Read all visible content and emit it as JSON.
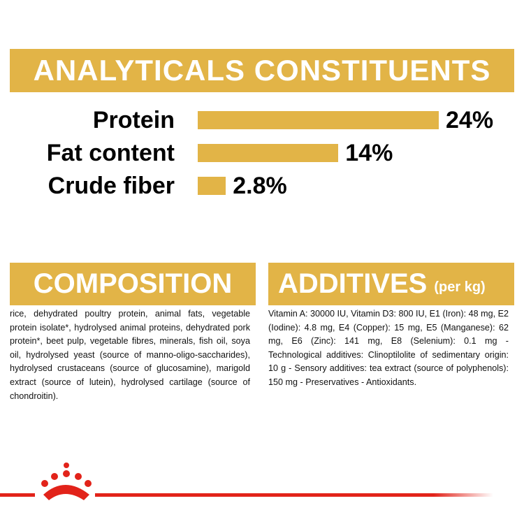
{
  "analyticals": {
    "title": "ANALYTICALS CONSTITUENTS",
    "type": "bar",
    "color": "#e2b447",
    "categories": [
      "Protein",
      "Fat content",
      "Crude fiber"
    ],
    "values": [
      24,
      14,
      2.8
    ],
    "value_labels": [
      "24%",
      "14%",
      "2.8%"
    ]
  },
  "composition": {
    "title": "COMPOSITION",
    "text": "rice, dehydrated poultry protein, animal fats, vegetable protein isolate*, hydrolysed animal proteins, dehydrated pork protein*, beet pulp, vegetable fibres, minerals, fish oil, soya oil, hydrolysed yeast (source of manno-oligo-saccharides), hydrolysed crustaceans (source of glucosamine), marigold extract (source of lutein), hydrolysed cartilage (source of chondroitin)."
  },
  "additives": {
    "title": "ADDITIVES",
    "subtitle": "(per kg)",
    "text": "Vitamin A: 30000 IU, Vitamin D3: 800 IU, E1 (Iron): 48 mg, E2 (Iodine): 4.8 mg, E4 (Copper): 15 mg, E5 (Manganese): 62 mg, E6 (Zinc): 141 mg, E8 (Selenium): 0.1 mg - Technological additives: Clinoptilolite of sedimentary origin: 10 g - Sensory additives: tea extract (source of polyphenols): 150 mg - Preservatives - Antioxidants."
  }
}
